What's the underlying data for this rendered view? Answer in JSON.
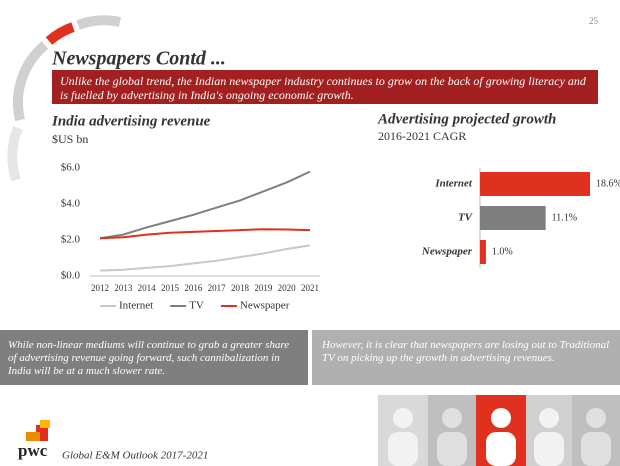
{
  "page_number": "25",
  "header": {
    "title": "Newspapers Contd ...",
    "banner": "Unlike the global trend, the Indian newspaper industry continues to grow on the back of growing literacy and is fuelled by advertising in India's ongoing economic growth."
  },
  "chart_data": [
    {
      "type": "line",
      "title": "India advertising revenue",
      "subtitle": "$US bn",
      "categories": [
        "2012",
        "2013",
        "2014",
        "2015",
        "2016",
        "2017",
        "2018",
        "2019",
        "2020",
        "2021"
      ],
      "series": [
        {
          "name": "Internet",
          "color": "#c8c8c8",
          "values": [
            0.3,
            0.35,
            0.45,
            0.55,
            0.7,
            0.85,
            1.05,
            1.25,
            1.5,
            1.7
          ]
        },
        {
          "name": "TV",
          "color": "#7f7f7f",
          "values": [
            2.1,
            2.3,
            2.7,
            3.05,
            3.4,
            3.8,
            4.2,
            4.7,
            5.2,
            5.8
          ]
        },
        {
          "name": "Newspaper",
          "color": "#e0301e",
          "values": [
            2.1,
            2.15,
            2.3,
            2.4,
            2.45,
            2.5,
            2.55,
            2.6,
            2.58,
            2.55
          ]
        }
      ],
      "ylim": [
        0,
        6
      ],
      "yticks": [
        {
          "value": 0,
          "label": "$0.0"
        },
        {
          "value": 2,
          "label": "$2.0"
        },
        {
          "value": 4,
          "label": "$4.0"
        },
        {
          "value": 6,
          "label": "$6.0"
        }
      ],
      "legend": "bottom"
    },
    {
      "type": "bar",
      "title": "Advertising projected growth",
      "subtitle": "2016-2021 CAGR",
      "categories": [
        "Internet",
        "TV",
        "Newspaper"
      ],
      "values": [
        18.6,
        11.1,
        1.0
      ],
      "value_labels": [
        "18.6%",
        "11.1%",
        "1.0%"
      ],
      "colors": [
        "#e0301e",
        "#7f7f7f",
        "#e0301e"
      ]
    }
  ],
  "notes": [
    "While non-linear mediums will continue to grab a greater share of advertising revenue going forward, such cannibalization in India will be at a much slower rate.",
    "However, it is clear that newspapers are losing out to Traditional TV on picking up the growth in advertising revenues."
  ],
  "footer": {
    "logo": "pwc",
    "text": "Global E&M Outlook 2017-2021"
  }
}
